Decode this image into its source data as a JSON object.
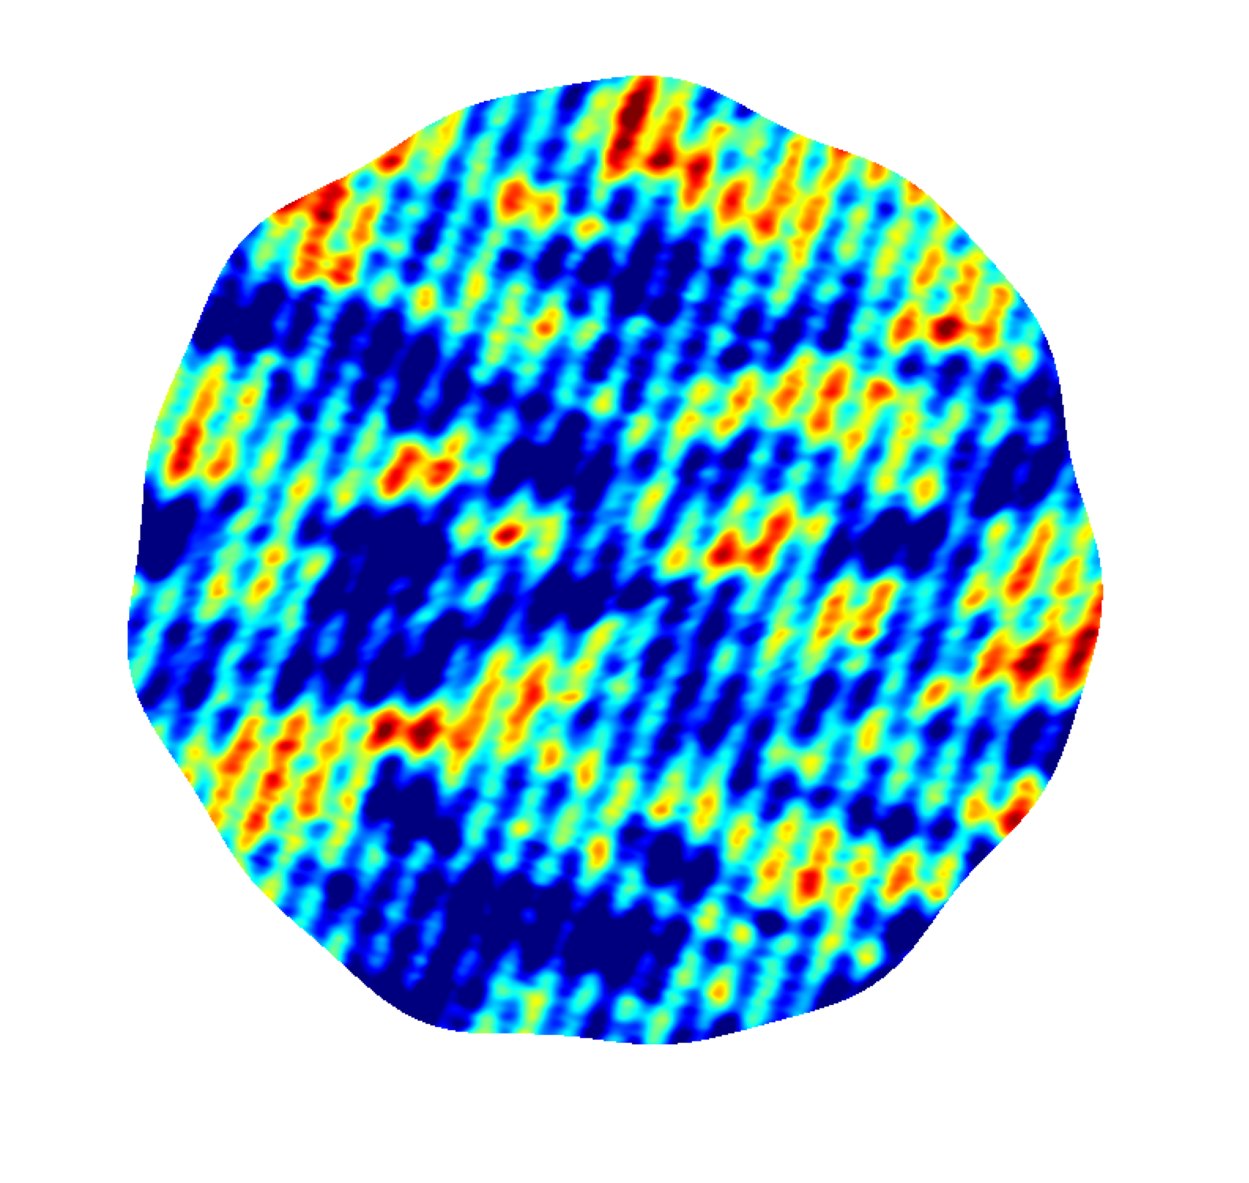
{
  "colormap": {
    "name": "jet",
    "stops": [
      "#00007f",
      "#0000ff",
      "#0080ff",
      "#00ffff",
      "#80ff80",
      "#ffff00",
      "#ff8000",
      "#ff0000",
      "#7f0000"
    ]
  },
  "background_color": "#ffffff",
  "field": {
    "description_shown": "",
    "pattern": "noise-field",
    "mask_shape": "disc"
  }
}
